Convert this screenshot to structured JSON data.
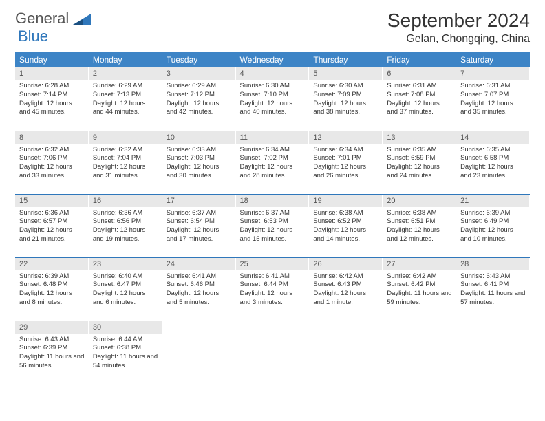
{
  "logo": {
    "text1": "General",
    "text2": "Blue"
  },
  "title": "September 2024",
  "location": "Gelan, Chongqing, China",
  "colors": {
    "header_bg": "#3d84c6",
    "header_text": "#ffffff",
    "daynum_bg": "#e8e8e8",
    "row_border": "#2f77bb"
  },
  "dow": [
    "Sunday",
    "Monday",
    "Tuesday",
    "Wednesday",
    "Thursday",
    "Friday",
    "Saturday"
  ],
  "days": [
    {
      "n": "1",
      "sr": "6:28 AM",
      "ss": "7:14 PM",
      "dl": "12 hours and 45 minutes."
    },
    {
      "n": "2",
      "sr": "6:29 AM",
      "ss": "7:13 PM",
      "dl": "12 hours and 44 minutes."
    },
    {
      "n": "3",
      "sr": "6:29 AM",
      "ss": "7:12 PM",
      "dl": "12 hours and 42 minutes."
    },
    {
      "n": "4",
      "sr": "6:30 AM",
      "ss": "7:10 PM",
      "dl": "12 hours and 40 minutes."
    },
    {
      "n": "5",
      "sr": "6:30 AM",
      "ss": "7:09 PM",
      "dl": "12 hours and 38 minutes."
    },
    {
      "n": "6",
      "sr": "6:31 AM",
      "ss": "7:08 PM",
      "dl": "12 hours and 37 minutes."
    },
    {
      "n": "7",
      "sr": "6:31 AM",
      "ss": "7:07 PM",
      "dl": "12 hours and 35 minutes."
    },
    {
      "n": "8",
      "sr": "6:32 AM",
      "ss": "7:06 PM",
      "dl": "12 hours and 33 minutes."
    },
    {
      "n": "9",
      "sr": "6:32 AM",
      "ss": "7:04 PM",
      "dl": "12 hours and 31 minutes."
    },
    {
      "n": "10",
      "sr": "6:33 AM",
      "ss": "7:03 PM",
      "dl": "12 hours and 30 minutes."
    },
    {
      "n": "11",
      "sr": "6:34 AM",
      "ss": "7:02 PM",
      "dl": "12 hours and 28 minutes."
    },
    {
      "n": "12",
      "sr": "6:34 AM",
      "ss": "7:01 PM",
      "dl": "12 hours and 26 minutes."
    },
    {
      "n": "13",
      "sr": "6:35 AM",
      "ss": "6:59 PM",
      "dl": "12 hours and 24 minutes."
    },
    {
      "n": "14",
      "sr": "6:35 AM",
      "ss": "6:58 PM",
      "dl": "12 hours and 23 minutes."
    },
    {
      "n": "15",
      "sr": "6:36 AM",
      "ss": "6:57 PM",
      "dl": "12 hours and 21 minutes."
    },
    {
      "n": "16",
      "sr": "6:36 AM",
      "ss": "6:56 PM",
      "dl": "12 hours and 19 minutes."
    },
    {
      "n": "17",
      "sr": "6:37 AM",
      "ss": "6:54 PM",
      "dl": "12 hours and 17 minutes."
    },
    {
      "n": "18",
      "sr": "6:37 AM",
      "ss": "6:53 PM",
      "dl": "12 hours and 15 minutes."
    },
    {
      "n": "19",
      "sr": "6:38 AM",
      "ss": "6:52 PM",
      "dl": "12 hours and 14 minutes."
    },
    {
      "n": "20",
      "sr": "6:38 AM",
      "ss": "6:51 PM",
      "dl": "12 hours and 12 minutes."
    },
    {
      "n": "21",
      "sr": "6:39 AM",
      "ss": "6:49 PM",
      "dl": "12 hours and 10 minutes."
    },
    {
      "n": "22",
      "sr": "6:39 AM",
      "ss": "6:48 PM",
      "dl": "12 hours and 8 minutes."
    },
    {
      "n": "23",
      "sr": "6:40 AM",
      "ss": "6:47 PM",
      "dl": "12 hours and 6 minutes."
    },
    {
      "n": "24",
      "sr": "6:41 AM",
      "ss": "6:46 PM",
      "dl": "12 hours and 5 minutes."
    },
    {
      "n": "25",
      "sr": "6:41 AM",
      "ss": "6:44 PM",
      "dl": "12 hours and 3 minutes."
    },
    {
      "n": "26",
      "sr": "6:42 AM",
      "ss": "6:43 PM",
      "dl": "12 hours and 1 minute."
    },
    {
      "n": "27",
      "sr": "6:42 AM",
      "ss": "6:42 PM",
      "dl": "11 hours and 59 minutes."
    },
    {
      "n": "28",
      "sr": "6:43 AM",
      "ss": "6:41 PM",
      "dl": "11 hours and 57 minutes."
    },
    {
      "n": "29",
      "sr": "6:43 AM",
      "ss": "6:39 PM",
      "dl": "11 hours and 56 minutes."
    },
    {
      "n": "30",
      "sr": "6:44 AM",
      "ss": "6:38 PM",
      "dl": "11 hours and 54 minutes."
    }
  ],
  "labels": {
    "sunrise": "Sunrise:",
    "sunset": "Sunset:",
    "daylight": "Daylight:"
  }
}
